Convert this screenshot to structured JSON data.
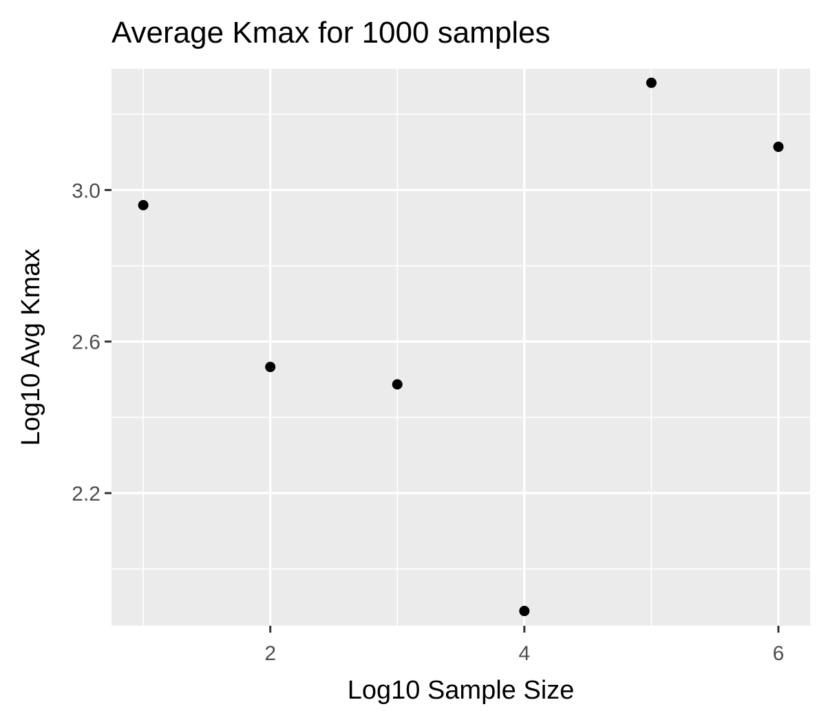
{
  "chart_data": {
    "type": "scatter",
    "title": "Average Kmax for 1000 samples",
    "xlabel": "Log10 Sample Size",
    "ylabel": "Log10 Avg Kmax",
    "x": [
      1,
      2,
      3,
      4,
      5,
      6
    ],
    "y": [
      2.96,
      2.533,
      2.487,
      1.889,
      3.283,
      3.114
    ],
    "xlim": [
      0.75,
      6.25
    ],
    "ylim": [
      1.85,
      3.32
    ],
    "x_major_ticks": [
      2,
      4,
      6
    ],
    "x_minor_ticks": [
      1,
      3,
      5
    ],
    "y_major_ticks": [
      2.2,
      2.6,
      3.0
    ],
    "y_minor_ticks": [
      2.0,
      2.4,
      2.8,
      3.2
    ],
    "x_tick_labels": [
      "2",
      "4",
      "6"
    ],
    "y_tick_labels": [
      "2.2",
      "2.6",
      "3.0"
    ],
    "grid": true,
    "colors": {
      "panel_background": "#ebebeb",
      "grid_line": "#ffffff",
      "point": "#000000",
      "tick_label": "#4d4d4d",
      "axis_tick": "#333333"
    }
  }
}
